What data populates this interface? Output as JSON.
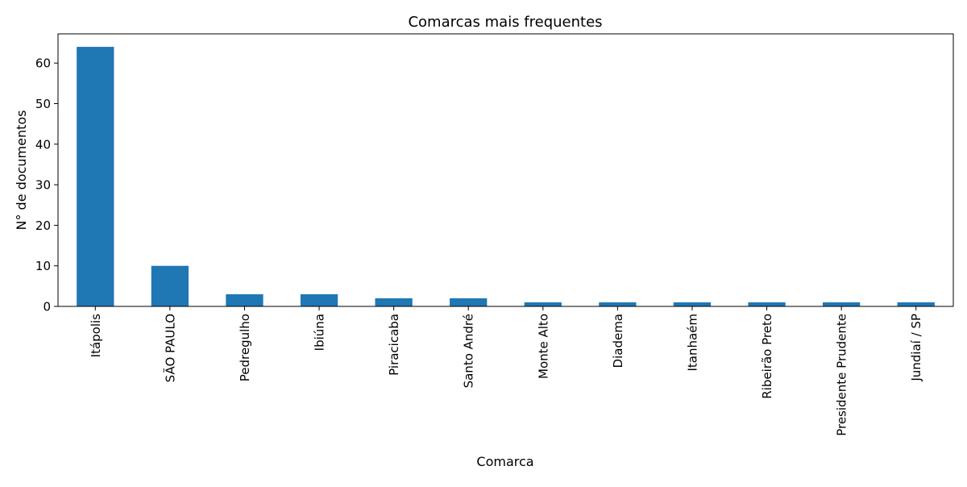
{
  "chart_data": {
    "type": "bar",
    "title": "Comarcas mais frequentes",
    "xlabel": "Comarca",
    "ylabel": "N° de documentos",
    "categories": [
      "Itápolis",
      "SÃO PAULO",
      "Pedregulho",
      "Ibiúna",
      "Piracicaba",
      "Santo André",
      "Monte Alto",
      "Diadema",
      "Itanhaém",
      "Ribeirão Preto",
      "Presidente Prudente",
      "Jundiaí / SP"
    ],
    "values": [
      64,
      10,
      3,
      3,
      2,
      2,
      1,
      1,
      1,
      1,
      1,
      1
    ],
    "ylim": [
      0,
      67.2
    ],
    "yticks": [
      0,
      10,
      20,
      30,
      40,
      50,
      60
    ],
    "grid": false,
    "bar_color": "#1f77b4"
  }
}
